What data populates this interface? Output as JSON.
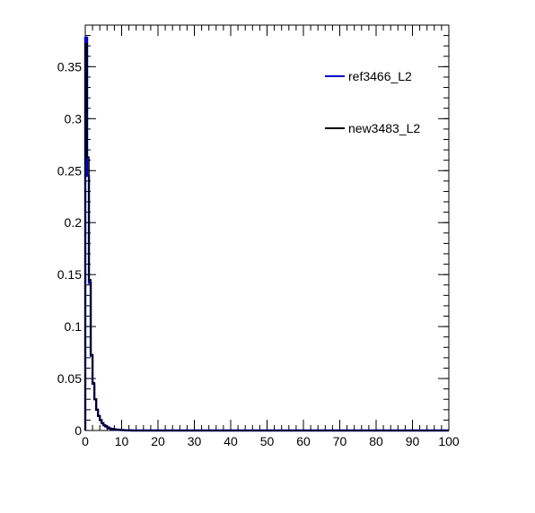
{
  "chart_data": {
    "type": "histogram-step",
    "title": "",
    "xlabel": "",
    "ylabel": "",
    "xlim": [
      0,
      100
    ],
    "ylim": [
      0,
      0.39
    ],
    "x_ticks": [
      0,
      10,
      20,
      30,
      40,
      50,
      60,
      70,
      80,
      90,
      100
    ],
    "x_tick_labels": [
      "0",
      "10",
      "20",
      "30",
      "40",
      "50",
      "60",
      "70",
      "80",
      "90",
      "100"
    ],
    "y_ticks": [
      0,
      0.05,
      0.1,
      0.15,
      0.2,
      0.25,
      0.3,
      0.35
    ],
    "y_tick_labels": [
      "0",
      "0.05",
      "0.1",
      "0.15",
      "0.2",
      "0.25",
      "0.3",
      "0.35"
    ],
    "bin_width": 0.5,
    "grid": false,
    "legend_position": "top-right",
    "series": [
      {
        "name": "ref3466_L2",
        "color": "#0000cc",
        "values": [
          0.378,
          0.245,
          0.142,
          0.072,
          0.045,
          0.03,
          0.02,
          0.014,
          0.01,
          0.007,
          0.005,
          0.004,
          0.003,
          0.002,
          0.0015,
          0.0012,
          0.001,
          0.0008,
          0.0006,
          0.0005,
          0.0004,
          0.0003,
          0.0002,
          0.0002,
          0.0001,
          0.0001
        ]
      },
      {
        "name": "new3483_L2",
        "color": "#000000",
        "values": [
          0.372,
          0.263,
          0.145,
          0.073,
          0.046,
          0.03,
          0.02,
          0.014,
          0.01,
          0.007,
          0.005,
          0.004,
          0.003,
          0.002,
          0.0015,
          0.0012,
          0.001,
          0.0008,
          0.0006,
          0.0005,
          0.0004,
          0.0003,
          0.0002,
          0.0002,
          0.0001,
          0.0001
        ]
      }
    ]
  }
}
